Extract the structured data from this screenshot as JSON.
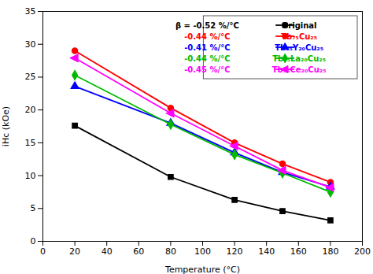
{
  "chart_data": {
    "type": "line",
    "xlabel": "Temperature (°C)",
    "ylabel": "iHc (kOe)",
    "x": [
      20,
      80,
      120,
      150,
      180
    ],
    "series": [
      {
        "name": "Original",
        "color": "#000000",
        "marker": "square",
        "values": [
          17.6,
          9.8,
          6.3,
          4.6,
          3.2
        ]
      },
      {
        "name": "Tb₇₅Cu₂₅",
        "color": "#ff0000",
        "marker": "circle",
        "values": [
          29.0,
          20.3,
          15.0,
          11.8,
          9.0
        ]
      },
      {
        "name": "Tb₅₅Y₂₀Cu₂₅",
        "color": "#0000ff",
        "marker": "triangle-up",
        "values": [
          23.6,
          18.0,
          13.5,
          10.5,
          8.3
        ]
      },
      {
        "name": "Tb₅₅La₂₀Cu₂₅",
        "color": "#00bb00",
        "marker": "diamond",
        "values": [
          25.3,
          17.8,
          13.2,
          10.4,
          7.5
        ]
      },
      {
        "name": "Tb₅₅Ce₂₀Cu₂₅",
        "color": "#ff00ff",
        "marker": "triangle-left",
        "values": [
          27.9,
          19.5,
          14.5,
          10.8,
          8.2
        ]
      }
    ],
    "annotations": [
      {
        "text": "β = -0.52 %/°C",
        "color": "#000000"
      },
      {
        "text": "-0.44 %/°C",
        "color": "#ff0000"
      },
      {
        "text": "-0.41 %/°C",
        "color": "#0000ff"
      },
      {
        "text": "-0.44 %/°C",
        "color": "#00bb00"
      },
      {
        "text": "-0.45 %/°C",
        "color": "#ff00ff"
      }
    ],
    "xlim": [
      0,
      200
    ],
    "xticks": [
      0,
      20,
      40,
      60,
      80,
      100,
      120,
      140,
      160,
      180,
      200
    ],
    "ylim": [
      0,
      35
    ],
    "yticks": [
      0,
      5,
      10,
      15,
      20,
      25,
      30,
      35
    ],
    "grid": false,
    "legend": "upper right"
  }
}
